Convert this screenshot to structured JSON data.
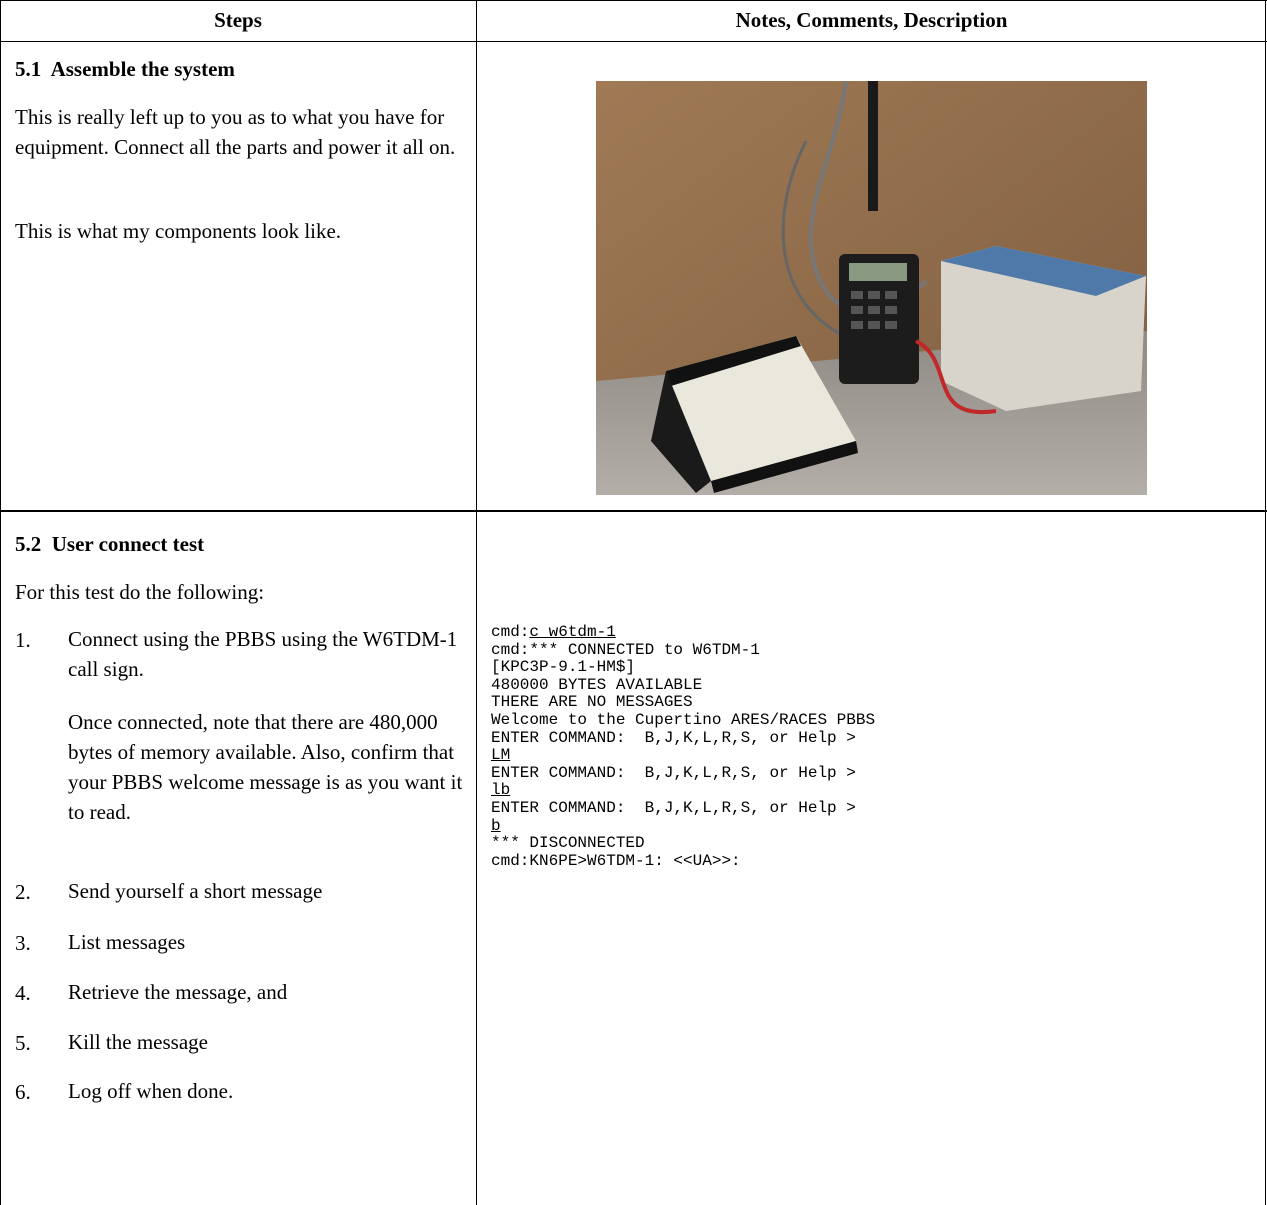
{
  "header": {
    "steps": "Steps",
    "notes": "Notes, Comments, Description"
  },
  "sections": [
    {
      "title": "5.1  Assemble the system",
      "paragraphs": [
        "This is really left up to you as to what you have for equipment.  Connect all the parts and power it all on.",
        "This is what my components look like."
      ]
    },
    {
      "title": "5.2  User connect test",
      "intro": "For this test do the following:",
      "steps": [
        {
          "number": "1.",
          "text": "Connect using the PBBS using the W6TDM-1 call sign.",
          "note": "Once connected, note that there are 480,000 bytes of memory available. Also, confirm that your PBBS welcome message is as you want it to read."
        },
        {
          "number": "2.",
          "text": "Send yourself a short message"
        },
        {
          "number": "3.",
          "text": "List messages"
        },
        {
          "number": "4.",
          "text": "Retrieve the message, and"
        },
        {
          "number": "5.",
          "text": "Kill the message"
        },
        {
          "number": "6.",
          "text": "Log off when done."
        }
      ],
      "terminal": [
        {
          "prompt": "cmd:",
          "input": "c w6tdm-1"
        },
        {
          "output": "cmd:*** CONNECTED to W6TDM-1"
        },
        {
          "output": "[KPC3P-9.1-HM$]"
        },
        {
          "output": "480000 BYTES AVAILABLE"
        },
        {
          "output": "THERE ARE NO MESSAGES"
        },
        {
          "output": "Welcome to the Cupertino ARES/RACES PBBS"
        },
        {
          "output": "ENTER COMMAND:  B,J,K,L,R,S, or Help >"
        },
        {
          "input": "LM"
        },
        {
          "output": "ENTER COMMAND:  B,J,K,L,R,S, or Help >"
        },
        {
          "input": "lb"
        },
        {
          "output": "ENTER COMMAND:  B,J,K,L,R,S, or Help >"
        },
        {
          "input": "b"
        },
        {
          "output": "*** DISCONNECTED"
        },
        {
          "output": "cmd:KN6PE>W6TDM-1: <<UA>>:"
        }
      ]
    }
  ]
}
